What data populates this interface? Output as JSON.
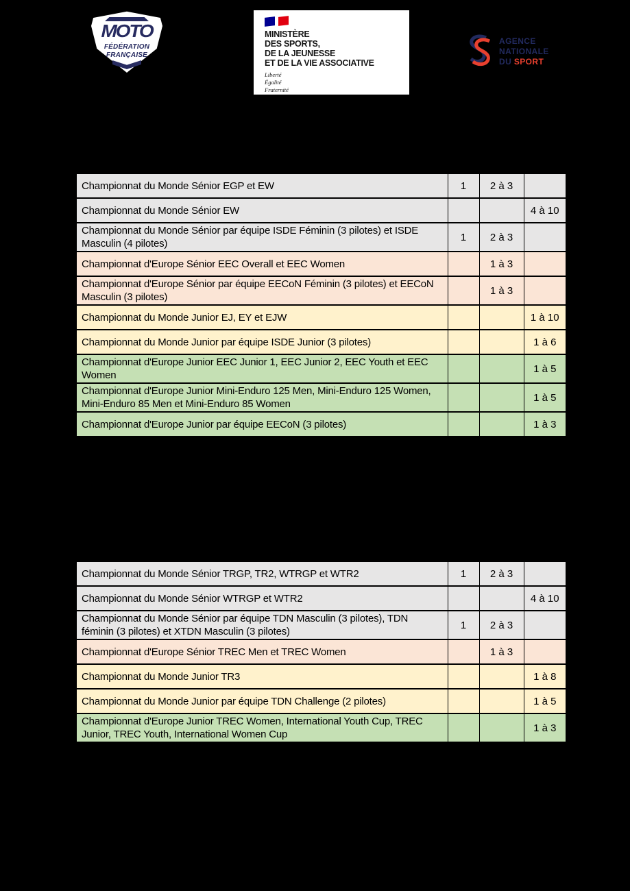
{
  "palette": {
    "gray": "#e7e6e6",
    "peach": "#fbe5d6",
    "yellow": "#fff2cc",
    "green": "#c5e0b4",
    "border": "#000000",
    "page_background": "#000000",
    "text": "#000000"
  },
  "logos": {
    "ffm": {
      "title": "MOTO",
      "sub1": "FÉDÉRATION",
      "sub2": "FRANÇAISE",
      "navy": "#272b60"
    },
    "ministry": {
      "lines": [
        "MINISTÈRE",
        "DES SPORTS,",
        "DE LA JEUNESSE",
        "ET DE LA VIE ASSOCIATIVE"
      ],
      "motto": [
        "Liberté",
        "Égalité",
        "Fraternité"
      ],
      "flag_blue": "#000091",
      "flag_red": "#E1000F"
    },
    "ans": {
      "line1": "AGENCE",
      "line2": "NATIONALE",
      "line3_prefix": "DU ",
      "line3_accent": "SPORT",
      "navy": "#222a5e",
      "red": "#e8402f"
    }
  },
  "tables": [
    {
      "id": "enduro",
      "rows": [
        {
          "label": "Championnat du Monde Sénior EGP et EW",
          "cells": [
            "1",
            "2 à 3",
            ""
          ],
          "color": "gray",
          "lines": 1
        },
        {
          "label": "Championnat du Monde Sénior EW",
          "cells": [
            "",
            "",
            "4 à 10"
          ],
          "color": "gray",
          "lines": 1
        },
        {
          "label": "Championnat du Monde Sénior par équipe ISDE Féminin (3 pilotes) et ISDE Masculin (4 pilotes)",
          "cells": [
            "1",
            "2 à 3",
            ""
          ],
          "color": "gray",
          "lines": 2
        },
        {
          "label": "Championnat d'Europe Sénior EEC Overall et EEC Women",
          "cells": [
            "",
            "1 à 3",
            ""
          ],
          "color": "peach",
          "lines": 1
        },
        {
          "label": "Championnat d'Europe Sénior par équipe EECoN Féminin (3 pilotes) et EECoN Masculin (3 pilotes)",
          "cells": [
            "",
            "1 à 3",
            ""
          ],
          "color": "peach",
          "lines": 2
        },
        {
          "label": "Championnat du Monde Junior EJ, EY et EJW",
          "cells": [
            "",
            "",
            "1 à 10"
          ],
          "color": "yellow",
          "lines": 1
        },
        {
          "label": "Championnat du Monde Junior par équipe ISDE Junior (3 pilotes)",
          "cells": [
            "",
            "",
            "1 à 6"
          ],
          "color": "yellow",
          "lines": 1
        },
        {
          "label": "Championnat d'Europe Junior EEC Junior 1, EEC Junior 2, EEC Youth et EEC Women",
          "cells": [
            "",
            "",
            "1 à 5"
          ],
          "color": "green",
          "lines": 2
        },
        {
          "label": "Championnat d'Europe Junior Mini-Enduro 125 Men, Mini-Enduro 125 Women, Mini-Enduro 85 Men et Mini-Enduro 85 Women",
          "cells": [
            "",
            "",
            "1 à 5"
          ],
          "color": "green",
          "lines": 2
        },
        {
          "label": "Championnat d'Europe Junior par équipe EECoN (3 pilotes)",
          "cells": [
            "",
            "",
            "1 à 3"
          ],
          "color": "green",
          "lines": 1
        }
      ]
    },
    {
      "id": "trial",
      "rows": [
        {
          "label": "Championnat du Monde Sénior TRGP, TR2, WTRGP et WTR2",
          "cells": [
            "1",
            "2 à 3",
            ""
          ],
          "color": "gray",
          "lines": 1
        },
        {
          "label": "Championnat du Monde Sénior WTRGP et WTR2",
          "cells": [
            "",
            "",
            "4 à 10"
          ],
          "color": "gray",
          "lines": 1
        },
        {
          "label": "Championnat du Monde Sénior par équipe TDN Masculin (3 pilotes), TDN féminin (3 pilotes) et XTDN Masculin (3 pilotes)",
          "cells": [
            "1",
            "2 à 3",
            ""
          ],
          "color": "gray",
          "lines": 2
        },
        {
          "label": "Championnat d'Europe Sénior TREC Men et TREC Women",
          "cells": [
            "",
            "1 à 3",
            ""
          ],
          "color": "peach",
          "lines": 1
        },
        {
          "label": "Championnat du Monde Junior TR3",
          "cells": [
            "",
            "",
            "1 à 8"
          ],
          "color": "yellow",
          "lines": 1
        },
        {
          "label": "Championnat du Monde Junior par équipe TDN Challenge (2 pilotes)",
          "cells": [
            "",
            "",
            "1 à 5"
          ],
          "color": "yellow",
          "lines": 1
        },
        {
          "label": "Championnat d'Europe Junior TREC Women, International Youth Cup, TREC Junior, TREC Youth, International Women Cup",
          "cells": [
            "",
            "",
            "1 à 3"
          ],
          "color": "green",
          "lines": 2
        }
      ]
    }
  ]
}
